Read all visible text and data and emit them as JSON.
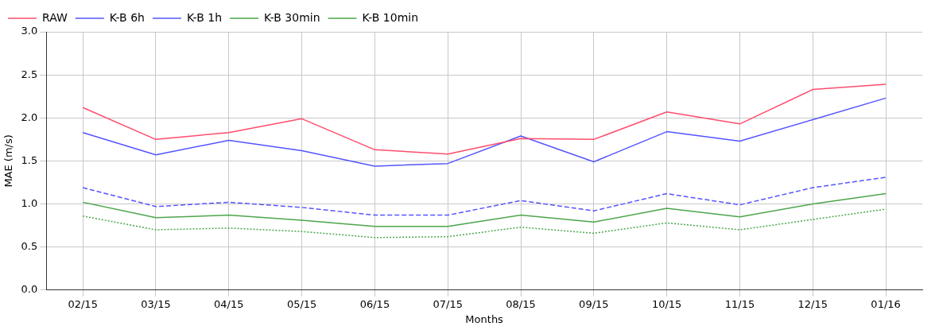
{
  "chart_data": {
    "type": "line",
    "xlabel": "Months",
    "ylabel": "MAE (m/s)",
    "categories": [
      "02/15",
      "03/15",
      "04/15",
      "05/15",
      "06/15",
      "07/15",
      "08/15",
      "09/15",
      "10/15",
      "11/15",
      "12/15",
      "01/16"
    ],
    "series": [
      {
        "name": "RAW",
        "color": "#ff4d6d",
        "line_style": "solid",
        "values": [
          2.12,
          1.75,
          1.83,
          1.99,
          1.63,
          1.58,
          1.76,
          1.75,
          2.07,
          1.93,
          2.33,
          2.39
        ]
      },
      {
        "name": "K-B 6h",
        "color": "#5555ff",
        "line_style": "solid",
        "values": [
          1.83,
          1.57,
          1.74,
          1.62,
          1.44,
          1.47,
          1.79,
          1.49,
          1.84,
          1.73,
          1.98,
          2.23
        ]
      },
      {
        "name": "K-B 1h",
        "color": "#5555ff",
        "line_style": "dashed",
        "values": [
          1.19,
          0.97,
          1.02,
          0.96,
          0.87,
          0.87,
          1.04,
          0.92,
          1.12,
          0.99,
          1.19,
          1.31
        ]
      },
      {
        "name": "K-B 30min",
        "color": "#4ca64c",
        "line_style": "solid",
        "values": [
          1.02,
          0.84,
          0.87,
          0.81,
          0.74,
          0.74,
          0.87,
          0.79,
          0.95,
          0.85,
          1.0,
          1.12
        ]
      },
      {
        "name": "K-B 10min",
        "color": "#4ca64c",
        "line_style": "dotted",
        "values": [
          0.86,
          0.7,
          0.72,
          0.68,
          0.61,
          0.62,
          0.73,
          0.66,
          0.78,
          0.7,
          0.82,
          0.94
        ]
      }
    ],
    "ylim": [
      0,
      3
    ],
    "yticks": [
      {
        "value": 0,
        "label": "0.0"
      },
      0.5,
      {
        "value": 1,
        "label": "1.0"
      },
      1.5,
      {
        "value": 2,
        "label": "2.0"
      },
      2.5,
      {
        "value": 3,
        "label": "3.0"
      }
    ],
    "grid": true,
    "legend": "top left",
    "marker": "none"
  }
}
